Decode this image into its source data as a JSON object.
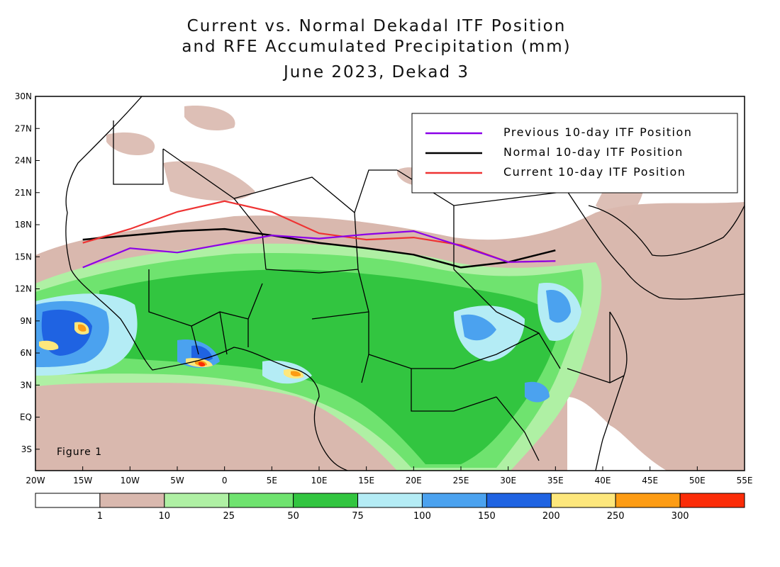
{
  "title": {
    "line1": "Current vs. Normal Dekadal ITF Position",
    "line2": "and RFE Accumulated Precipitation (mm)",
    "line3": "June 2023, Dekad 3"
  },
  "figure_label": "Figure 1",
  "axes": {
    "lat_labels": [
      "30N",
      "27N",
      "24N",
      "21N",
      "18N",
      "15N",
      "12N",
      "9N",
      "6N",
      "3N",
      "EQ",
      "3S"
    ],
    "lat_values": [
      30,
      27,
      24,
      21,
      18,
      15,
      12,
      9,
      6,
      3,
      0,
      -3
    ],
    "lon_labels": [
      "20W",
      "15W",
      "10W",
      "5W",
      "0",
      "5E",
      "10E",
      "15E",
      "20E",
      "25E",
      "30E",
      "35E",
      "40E",
      "45E",
      "50E",
      "55E"
    ],
    "lon_values": [
      -20,
      -15,
      -10,
      -5,
      0,
      5,
      10,
      15,
      20,
      25,
      30,
      35,
      40,
      45,
      50,
      55
    ],
    "lon_range": [
      -20,
      55
    ],
    "lat_range": [
      -5,
      30
    ]
  },
  "legend": {
    "items": [
      {
        "label": "Previous 10-day ITF Position",
        "color": "#8b00e8"
      },
      {
        "label": "Normal 10-day ITF Position",
        "color": "#000000"
      },
      {
        "label": "Current 10-day ITF Position",
        "color": "#ee3333"
      }
    ]
  },
  "colorbar": {
    "colors": [
      "#ffffff",
      "#d9b8ae",
      "#aff0a4",
      "#6fe36f",
      "#32c540",
      "#b4ecf5",
      "#4ba2ef",
      "#1f63e2",
      "#fde77c",
      "#fd9c14",
      "#fb2c08"
    ],
    "labels": [
      "1",
      "10",
      "25",
      "50",
      "75",
      "100",
      "150",
      "200",
      "250",
      "300"
    ]
  },
  "itf_lines": {
    "previous": [
      [
        -15,
        14.0
      ],
      [
        -10,
        15.8
      ],
      [
        -5,
        15.4
      ],
      [
        0,
        16.2
      ],
      [
        5,
        17.0
      ],
      [
        10,
        16.7
      ],
      [
        15,
        17.1
      ],
      [
        20,
        17.4
      ],
      [
        25,
        16.0
      ],
      [
        30,
        14.5
      ],
      [
        35,
        14.6
      ]
    ],
    "normal": [
      [
        -15,
        16.6
      ],
      [
        -10,
        17.0
      ],
      [
        -5,
        17.4
      ],
      [
        0,
        17.6
      ],
      [
        5,
        17.0
      ],
      [
        10,
        16.3
      ],
      [
        15,
        15.8
      ],
      [
        20,
        15.2
      ],
      [
        25,
        14.0
      ],
      [
        30,
        14.5
      ],
      [
        35,
        15.6
      ]
    ],
    "current": [
      [
        -15,
        16.3
      ],
      [
        -10,
        17.6
      ],
      [
        -5,
        19.2
      ],
      [
        0,
        20.2
      ],
      [
        5,
        19.2
      ],
      [
        10,
        17.2
      ],
      [
        15,
        16.6
      ],
      [
        20,
        16.8
      ],
      [
        25,
        16.1
      ],
      [
        30,
        14.5
      ],
      [
        35,
        14.6
      ]
    ]
  }
}
